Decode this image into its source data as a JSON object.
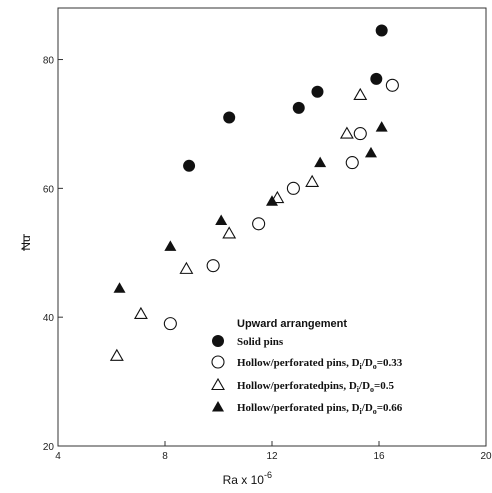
{
  "chart_data": {
    "type": "scatter",
    "title": "",
    "xlabel": "Ra x 10",
    "xlabel_exp": "-6",
    "ylabel": "Nu",
    "xlim": [
      4,
      20
    ],
    "ylim": [
      20,
      88
    ],
    "xticks": [
      4,
      8,
      12,
      16,
      20
    ],
    "yticks": [
      20,
      40,
      60,
      80
    ],
    "grid": false,
    "legend": {
      "title": "Upward arrangement",
      "placement": "bottom-right"
    },
    "series": [
      {
        "name": "Solid pins",
        "marker": "filled-circle",
        "points": [
          [
            8.9,
            63.5
          ],
          [
            10.4,
            71
          ],
          [
            13,
            72.5
          ],
          [
            13.7,
            75
          ],
          [
            15.9,
            77
          ],
          [
            16.1,
            84.5
          ]
        ]
      },
      {
        "name": "Hollow/perforated pins, Di/Do=0.33",
        "name_parts": {
          "before": "Hollow/perforated pins, D",
          "sub1": "i",
          "mid": "/D",
          "sub2": "o",
          "after": "=0.33"
        },
        "marker": "open-circle",
        "points": [
          [
            8.2,
            39
          ],
          [
            9.8,
            48
          ],
          [
            11.5,
            54.5
          ],
          [
            12.8,
            60
          ],
          [
            15,
            64
          ],
          [
            15.3,
            68.5
          ],
          [
            16.5,
            76
          ]
        ]
      },
      {
        "name": "Hollow/perforatedpins, Di/Do=0.5",
        "name_parts": {
          "before": "Hollow/perforatedpins, D",
          "sub1": "i",
          "mid": "/D",
          "sub2": "o",
          "after": "=0.5"
        },
        "marker": "open-triangle",
        "points": [
          [
            6.2,
            34
          ],
          [
            7.1,
            40.5
          ],
          [
            8.8,
            47.5
          ],
          [
            10.4,
            53
          ],
          [
            12.2,
            58.5
          ],
          [
            13.5,
            61
          ],
          [
            14.8,
            68.5
          ],
          [
            15.3,
            74.5
          ]
        ]
      },
      {
        "name": "Hollow/perforated pins, Di/Do=0.66",
        "name_parts": {
          "before": "Hollow/perforated pins, D",
          "sub1": "i",
          "mid": "/D",
          "sub2": "o",
          "after": "=0.66"
        },
        "marker": "filled-triangle",
        "points": [
          [
            6.3,
            44.5
          ],
          [
            8.2,
            51
          ],
          [
            10.1,
            55
          ],
          [
            12,
            58
          ],
          [
            13.8,
            64
          ],
          [
            15.7,
            65.5
          ],
          [
            16.1,
            69.5
          ]
        ]
      }
    ]
  }
}
